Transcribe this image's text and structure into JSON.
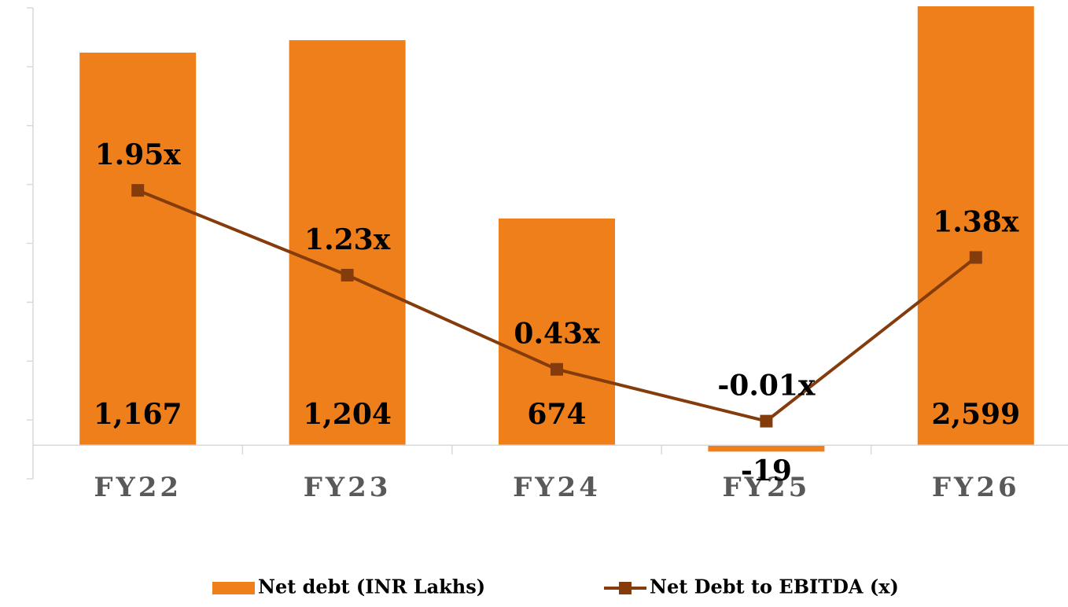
{
  "chart_data": {
    "type": "bar_line",
    "categories": [
      "FY22",
      "FY23",
      "FY24",
      "FY25",
      "FY26"
    ],
    "series": [
      {
        "name": "Net debt (INR Lakhs)",
        "type": "bar",
        "color": "#ee7f1b",
        "values": [
          1167,
          1204,
          674,
          -19,
          2599
        ],
        "value_labels": [
          "1,167",
          "1,204",
          "674",
          "-19",
          "2,599"
        ]
      },
      {
        "name": "Net Debt to EBITDA (x)",
        "type": "line",
        "axis": "y2",
        "color": "#843c0c",
        "values": [
          1.95,
          1.23,
          0.43,
          -0.01,
          1.38
        ],
        "value_labels": [
          "1.95x",
          "1.23x",
          "0.43x",
          "-0.01x",
          "1.38x"
        ]
      }
    ],
    "ylim": [
      -100,
      1300
    ],
    "y2lim": [
      -0.5,
      3.5
    ],
    "y2ticks": [
      -0.5,
      0,
      0.5,
      1,
      1.5,
      2,
      2.5,
      3,
      3.5
    ],
    "legend": "bottom"
  }
}
